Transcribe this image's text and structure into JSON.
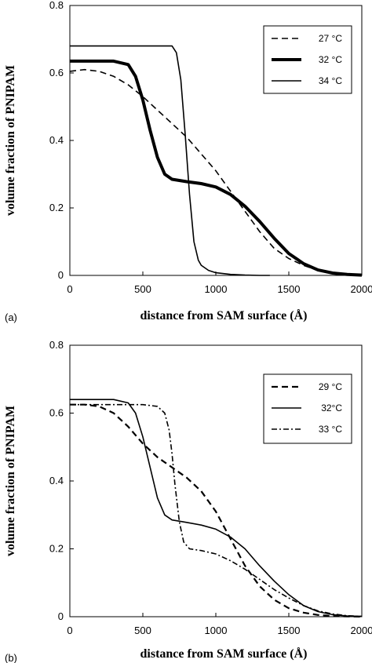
{
  "chart_data": [
    {
      "type": "line",
      "panel_label": "(a)",
      "xlabel": "distance from SAM surface (Å)",
      "ylabel": "volume fraction of PNIPAM",
      "xlim": [
        0,
        2000
      ],
      "ylim": [
        0,
        0.8
      ],
      "xticks": [
        "0",
        "500",
        "1000",
        "1500",
        "2000"
      ],
      "yticks": [
        "0",
        "0.2",
        "0.4",
        "0.6",
        "0.8"
      ],
      "legend_position": "top-right",
      "series": [
        {
          "name": "27 °C",
          "style": "dashed",
          "width": 1.6,
          "x": [
            0,
            100,
            200,
            300,
            400,
            500,
            600,
            700,
            800,
            900,
            1000,
            1100,
            1200,
            1300,
            1400,
            1500,
            1600,
            1700,
            1800,
            1900,
            2000
          ],
          "y": [
            0.605,
            0.61,
            0.605,
            0.59,
            0.565,
            0.53,
            0.49,
            0.45,
            0.41,
            0.36,
            0.31,
            0.25,
            0.19,
            0.13,
            0.08,
            0.05,
            0.03,
            0.015,
            0.007,
            0.003,
            0.001
          ]
        },
        {
          "name": "32 °C",
          "style": "solid",
          "width": 4,
          "x": [
            0,
            100,
            200,
            300,
            400,
            450,
            500,
            550,
            600,
            650,
            700,
            800,
            900,
            1000,
            1100,
            1200,
            1300,
            1400,
            1500,
            1600,
            1700,
            1800,
            1900,
            2000
          ],
          "y": [
            0.635,
            0.635,
            0.635,
            0.635,
            0.625,
            0.59,
            0.52,
            0.43,
            0.35,
            0.3,
            0.285,
            0.278,
            0.272,
            0.262,
            0.24,
            0.205,
            0.16,
            0.11,
            0.065,
            0.035,
            0.016,
            0.007,
            0.003,
            0.001
          ]
        },
        {
          "name": "34 °C",
          "style": "solid",
          "width": 1.6,
          "x": [
            0,
            100,
            200,
            300,
            400,
            500,
            600,
            700,
            730,
            760,
            790,
            820,
            850,
            880,
            900,
            950,
            1000,
            1100,
            1200,
            1300,
            1370
          ],
          "y": [
            0.68,
            0.68,
            0.68,
            0.68,
            0.68,
            0.68,
            0.68,
            0.68,
            0.66,
            0.58,
            0.42,
            0.24,
            0.1,
            0.045,
            0.03,
            0.015,
            0.008,
            0.003,
            0.001,
            0.0,
            0.0
          ]
        }
      ]
    },
    {
      "type": "line",
      "panel_label": "(b)",
      "xlabel": "distance from SAM surface (Å)",
      "ylabel": "volume fraction of PNIPAM",
      "xlim": [
        0,
        2000
      ],
      "ylim": [
        0,
        0.8
      ],
      "xticks": [
        "0",
        "500",
        "1000",
        "1500",
        "2000"
      ],
      "yticks": [
        "0",
        "0.2",
        "0.4",
        "0.6",
        "0.8"
      ],
      "legend_position": "top-right",
      "series": [
        {
          "name": "29 °C",
          "style": "dashed",
          "width": 2.2,
          "x": [
            0,
            100,
            200,
            300,
            400,
            500,
            600,
            700,
            800,
            900,
            1000,
            1100,
            1200,
            1300,
            1400,
            1500,
            1600,
            1700,
            1800,
            1900,
            2000
          ],
          "y": [
            0.625,
            0.625,
            0.62,
            0.6,
            0.56,
            0.51,
            0.47,
            0.44,
            0.41,
            0.37,
            0.31,
            0.23,
            0.15,
            0.09,
            0.05,
            0.025,
            0.012,
            0.005,
            0.002,
            0.001,
            0.0
          ]
        },
        {
          "name": "32°C",
          "style": "solid",
          "width": 1.6,
          "x": [
            0,
            100,
            200,
            300,
            400,
            450,
            500,
            550,
            600,
            650,
            700,
            800,
            900,
            1000,
            1100,
            1200,
            1300,
            1400,
            1500,
            1600,
            1700,
            1800,
            1900,
            2000
          ],
          "y": [
            0.64,
            0.64,
            0.64,
            0.64,
            0.63,
            0.6,
            0.53,
            0.44,
            0.35,
            0.3,
            0.285,
            0.278,
            0.27,
            0.258,
            0.235,
            0.2,
            0.15,
            0.105,
            0.065,
            0.033,
            0.015,
            0.006,
            0.002,
            0.001
          ]
        },
        {
          "name": "33 °C",
          "style": "dashdot",
          "width": 1.6,
          "x": [
            0,
            100,
            200,
            300,
            400,
            500,
            600,
            650,
            680,
            700,
            720,
            750,
            780,
            820,
            900,
            1000,
            1100,
            1200,
            1300,
            1400,
            1500,
            1600,
            1700,
            1800,
            1900,
            2000
          ],
          "y": [
            0.625,
            0.625,
            0.625,
            0.625,
            0.625,
            0.625,
            0.62,
            0.6,
            0.55,
            0.48,
            0.39,
            0.28,
            0.22,
            0.2,
            0.195,
            0.185,
            0.165,
            0.14,
            0.11,
            0.08,
            0.055,
            0.033,
            0.017,
            0.008,
            0.003,
            0.001
          ]
        }
      ]
    }
  ]
}
